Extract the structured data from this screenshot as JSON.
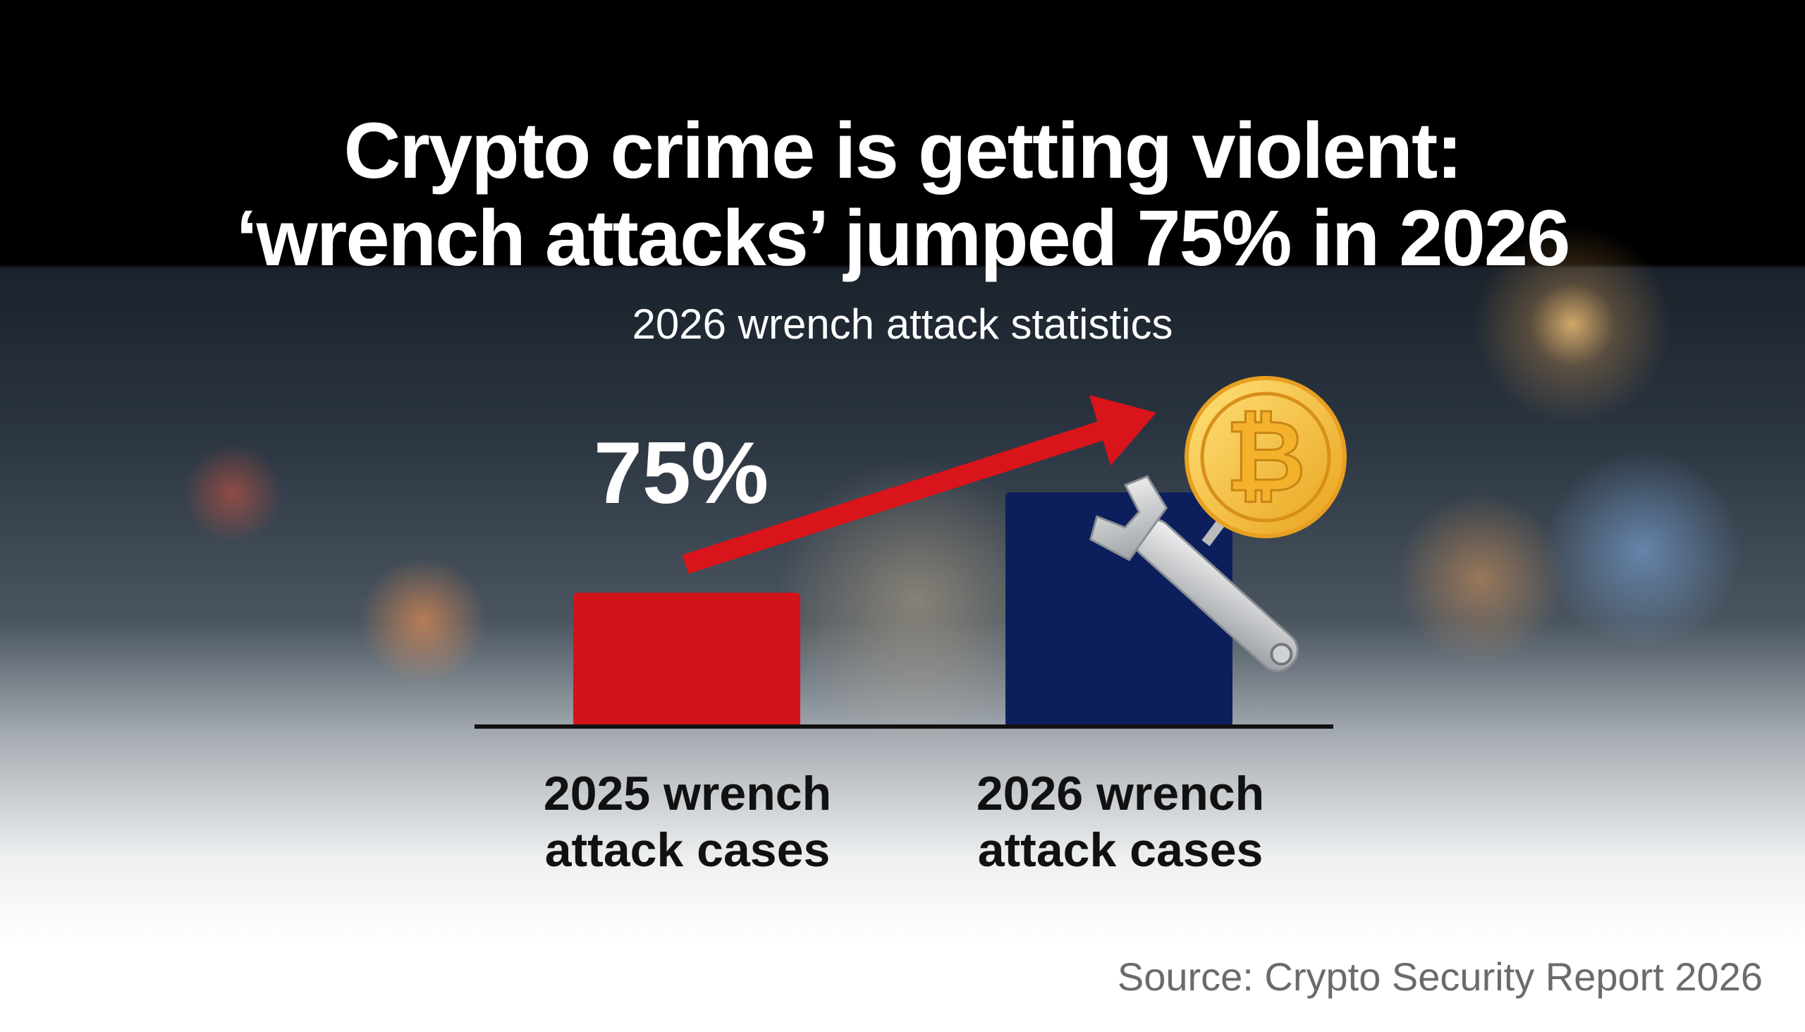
{
  "title_lines": [
    "Crypto crime is getting violent:",
    "‘wrench attacks’ jumped 75% in 2026"
  ],
  "subtitle": "2026 wrench attack statistics",
  "source": "Source: Crypto Security Report 2026",
  "icons": [
    "bitcoin-coin-icon",
    "wrench-icon",
    "trend-arrow-icon"
  ],
  "chart_data": {
    "type": "bar",
    "title": "2026 wrench attack statistics",
    "categories": [
      "2025 wrench attack cases",
      "2026 wrench attack cases"
    ],
    "category_lines": [
      [
        "2025 wrench",
        "attack cases"
      ],
      [
        "2026 wrench",
        "attack cases"
      ]
    ],
    "values": [
      1.0,
      1.75
    ],
    "annotation": "75%",
    "colors": [
      "#d0141a",
      "#0c1f5c"
    ],
    "grid": false,
    "xlabel": "",
    "ylabel": ""
  }
}
